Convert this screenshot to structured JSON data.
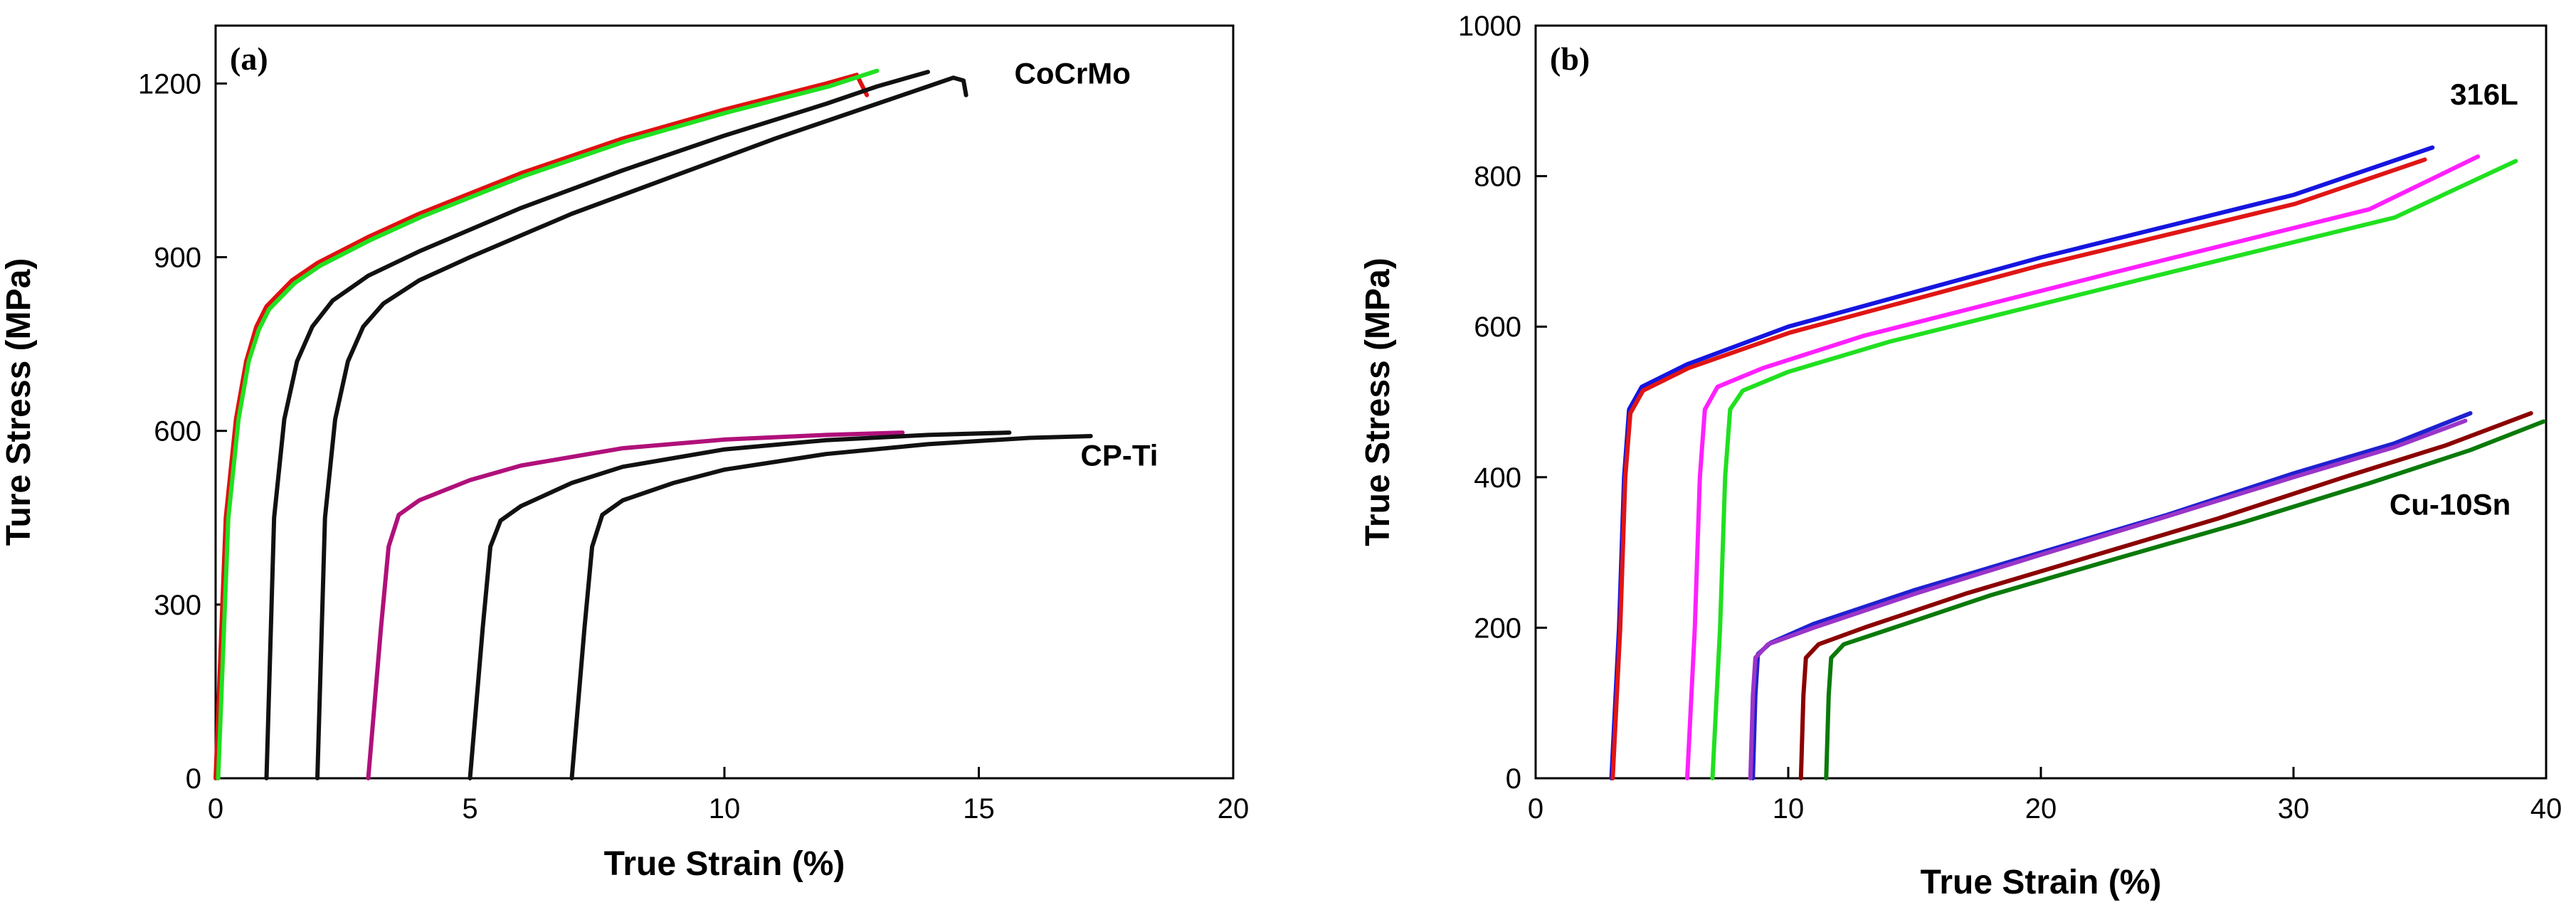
{
  "chart_data": [
    {
      "type": "line",
      "panel_label": "(a)",
      "xlabel": "True Strain (%)",
      "ylabel": "Ture Stress (MPa)",
      "xlim": [
        0,
        20
      ],
      "ylim": [
        0,
        1300
      ],
      "xticks": [
        0,
        5,
        10,
        15,
        20
      ],
      "yticks": [
        0,
        300,
        600,
        900,
        1200
      ],
      "xtick_labels": [
        "0",
        "5",
        "10",
        "15",
        "20"
      ],
      "ytick_labels": [
        "0",
        "300",
        "600",
        "900",
        "1200"
      ],
      "annotations": [
        {
          "text": "CoCrMo",
          "x": 15.7,
          "y": 1200
        },
        {
          "text": "CP-Ti",
          "x": 17.0,
          "y": 540
        }
      ],
      "series": [
        {
          "name": "CoCrMo red",
          "color": "#e01010",
          "points": [
            [
              0,
              0
            ],
            [
              0.2,
              450
            ],
            [
              0.4,
              620
            ],
            [
              0.6,
              720
            ],
            [
              0.8,
              780
            ],
            [
              1.0,
              815
            ],
            [
              1.5,
              860
            ],
            [
              2,
              890
            ],
            [
              3,
              935
            ],
            [
              4,
              975
            ],
            [
              6,
              1045
            ],
            [
              8,
              1105
            ],
            [
              10,
              1155
            ],
            [
              12,
              1200
            ],
            [
              12.6,
              1215
            ],
            [
              12.8,
              1180
            ]
          ]
        },
        {
          "name": "CoCrMo green",
          "color": "#20e020",
          "points": [
            [
              0.05,
              0
            ],
            [
              0.25,
              450
            ],
            [
              0.45,
              620
            ],
            [
              0.65,
              720
            ],
            [
              0.85,
              775
            ],
            [
              1.05,
              810
            ],
            [
              1.55,
              855
            ],
            [
              2.05,
              885
            ],
            [
              3.05,
              930
            ],
            [
              4.05,
              970
            ],
            [
              6.05,
              1040
            ],
            [
              8.05,
              1100
            ],
            [
              10.05,
              1150
            ],
            [
              12.05,
              1195
            ],
            [
              13,
              1222
            ]
          ]
        },
        {
          "name": "CoCrMo black 1",
          "color": "#111111",
          "points": [
            [
              1,
              0
            ],
            [
              1.15,
              450
            ],
            [
              1.35,
              620
            ],
            [
              1.6,
              720
            ],
            [
              1.9,
              780
            ],
            [
              2.3,
              825
            ],
            [
              3,
              868
            ],
            [
              4,
              910
            ],
            [
              6,
              985
            ],
            [
              8,
              1050
            ],
            [
              10,
              1110
            ],
            [
              12,
              1165
            ],
            [
              13,
              1195
            ],
            [
              14,
              1220
            ]
          ]
        },
        {
          "name": "CoCrMo black 2",
          "color": "#111111",
          "points": [
            [
              2,
              0
            ],
            [
              2.15,
              450
            ],
            [
              2.35,
              620
            ],
            [
              2.6,
              720
            ],
            [
              2.9,
              780
            ],
            [
              3.3,
              820
            ],
            [
              4,
              860
            ],
            [
              5,
              900
            ],
            [
              7,
              975
            ],
            [
              9,
              1040
            ],
            [
              11,
              1105
            ],
            [
              13,
              1165
            ],
            [
              14,
              1195
            ],
            [
              14.5,
              1210
            ],
            [
              14.7,
              1205
            ],
            [
              14.75,
              1180
            ]
          ]
        },
        {
          "name": "CP-Ti magenta",
          "color": "#b0107a",
          "points": [
            [
              3,
              0
            ],
            [
              3.25,
              260
            ],
            [
              3.4,
              400
            ],
            [
              3.6,
              455
            ],
            [
              4,
              480
            ],
            [
              5,
              515
            ],
            [
              6,
              540
            ],
            [
              8,
              570
            ],
            [
              10,
              585
            ],
            [
              12,
              593
            ],
            [
              13.5,
              597
            ]
          ]
        },
        {
          "name": "CP-Ti black 1",
          "color": "#111111",
          "points": [
            [
              5,
              0
            ],
            [
              5.25,
              260
            ],
            [
              5.4,
              400
            ],
            [
              5.6,
              445
            ],
            [
              6,
              470
            ],
            [
              7,
              510
            ],
            [
              8,
              538
            ],
            [
              10,
              568
            ],
            [
              12,
              584
            ],
            [
              14,
              593
            ],
            [
              15.6,
              597
            ]
          ]
        },
        {
          "name": "CP-Ti black 2",
          "color": "#111111",
          "points": [
            [
              7,
              0
            ],
            [
              7.25,
              260
            ],
            [
              7.4,
              400
            ],
            [
              7.6,
              455
            ],
            [
              8,
              480
            ],
            [
              9,
              510
            ],
            [
              10,
              533
            ],
            [
              12,
              560
            ],
            [
              14,
              577
            ],
            [
              16,
              588
            ],
            [
              17.2,
              591
            ]
          ]
        }
      ]
    },
    {
      "type": "line",
      "panel_label": "(b)",
      "xlabel": "True Strain (%)",
      "ylabel": "True Stress (MPa)",
      "xlim": [
        0,
        40
      ],
      "ylim": [
        0,
        1000
      ],
      "xticks": [
        0,
        10,
        20,
        30,
        40
      ],
      "yticks": [
        0,
        200,
        400,
        600,
        800,
        1000
      ],
      "xtick_labels": [
        "0",
        "10",
        "20",
        "30",
        "40"
      ],
      "ytick_labels": [
        "0",
        "200",
        "400",
        "600",
        "800",
        "1000"
      ],
      "annotations": [
        {
          "text": "316L",
          "x": 36.2,
          "y": 895
        },
        {
          "text": "Cu-10Sn",
          "x": 33.8,
          "y": 350
        }
      ],
      "series": [
        {
          "name": "316L blue",
          "color": "#1515e0",
          "points": [
            [
              3,
              0
            ],
            [
              3.3,
              200
            ],
            [
              3.5,
              400
            ],
            [
              3.7,
              490
            ],
            [
              4.2,
              520
            ],
            [
              6,
              550
            ],
            [
              10,
              600
            ],
            [
              20,
              692
            ],
            [
              30,
              775
            ],
            [
              35.5,
              838
            ]
          ]
        },
        {
          "name": "316L red",
          "color": "#e01515",
          "points": [
            [
              3.05,
              0
            ],
            [
              3.35,
              200
            ],
            [
              3.55,
              400
            ],
            [
              3.75,
              485
            ],
            [
              4.25,
              515
            ],
            [
              6.05,
              545
            ],
            [
              10.05,
              592
            ],
            [
              20.05,
              682
            ],
            [
              30.05,
              763
            ],
            [
              35.2,
              822
            ]
          ]
        },
        {
          "name": "316L magenta",
          "color": "#ff20ff",
          "points": [
            [
              6,
              0
            ],
            [
              6.3,
              200
            ],
            [
              6.5,
              400
            ],
            [
              6.7,
              490
            ],
            [
              7.2,
              520
            ],
            [
              9,
              545
            ],
            [
              13,
              588
            ],
            [
              23,
              673
            ],
            [
              33,
              756
            ],
            [
              37.3,
              826
            ]
          ]
        },
        {
          "name": "316L green",
          "color": "#20e020",
          "points": [
            [
              7,
              0
            ],
            [
              7.3,
              200
            ],
            [
              7.5,
              400
            ],
            [
              7.7,
              490
            ],
            [
              8.2,
              515
            ],
            [
              10,
              540
            ],
            [
              14,
              580
            ],
            [
              24,
              663
            ],
            [
              34,
              745
            ],
            [
              38.8,
              820
            ]
          ]
        },
        {
          "name": "Cu-10Sn blue",
          "color": "#2020d0",
          "points": [
            [
              8.6,
              0
            ],
            [
              8.7,
              110
            ],
            [
              8.8,
              165
            ],
            [
              9.3,
              180
            ],
            [
              11,
              205
            ],
            [
              15,
              250
            ],
            [
              20,
              300
            ],
            [
              25,
              350
            ],
            [
              30,
              405
            ],
            [
              34,
              445
            ],
            [
              37,
              485
            ]
          ]
        },
        {
          "name": "Cu-10Sn purple",
          "color": "#9a35c8",
          "points": [
            [
              8.5,
              0
            ],
            [
              8.6,
              110
            ],
            [
              8.7,
              160
            ],
            [
              9.2,
              178
            ],
            [
              11,
              200
            ],
            [
              15,
              245
            ],
            [
              20,
              297
            ],
            [
              25,
              348
            ],
            [
              30,
              400
            ],
            [
              34,
              440
            ],
            [
              36.8,
              475
            ]
          ]
        },
        {
          "name": "Cu-10Sn dark red",
          "color": "#8b0000",
          "points": [
            [
              10.5,
              0
            ],
            [
              10.6,
              110
            ],
            [
              10.7,
              160
            ],
            [
              11.2,
              178
            ],
            [
              13,
              200
            ],
            [
              17,
              245
            ],
            [
              22,
              295
            ],
            [
              27,
              345
            ],
            [
              32,
              400
            ],
            [
              36,
              442
            ],
            [
              39.4,
              485
            ]
          ]
        },
        {
          "name": "Cu-10Sn dark green",
          "color": "#0a7a0a",
          "points": [
            [
              11.5,
              0
            ],
            [
              11.6,
              110
            ],
            [
              11.7,
              160
            ],
            [
              12.2,
              178
            ],
            [
              14,
              198
            ],
            [
              18,
              243
            ],
            [
              23,
              292
            ],
            [
              28,
              340
            ],
            [
              33,
              392
            ],
            [
              37,
              436
            ],
            [
              39.9,
              474
            ]
          ]
        }
      ]
    }
  ]
}
